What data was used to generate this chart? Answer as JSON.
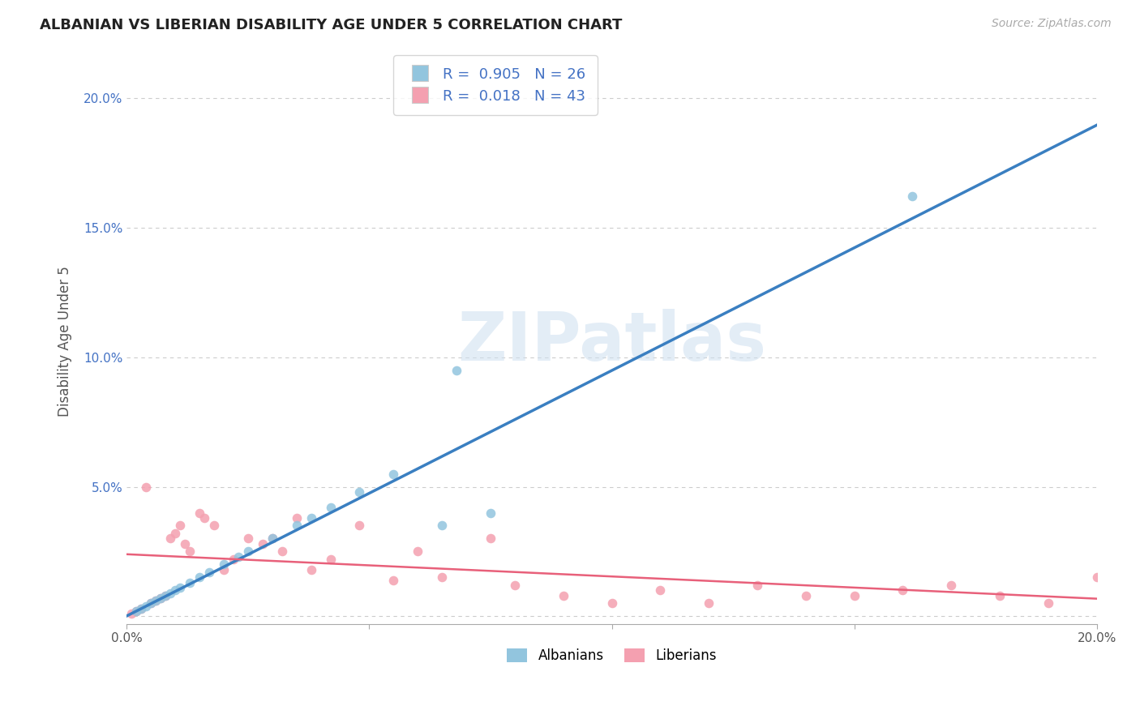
{
  "title": "ALBANIAN VS LIBERIAN DISABILITY AGE UNDER 5 CORRELATION CHART",
  "source": "Source: ZipAtlas.com",
  "ylabel": "Disability Age Under 5",
  "xlim": [
    0.0,
    0.2
  ],
  "ylim": [
    -0.003,
    0.215
  ],
  "legend_albanian_R": "0.905",
  "legend_albanian_N": "26",
  "legend_liberian_R": "0.018",
  "legend_liberian_N": "43",
  "albanian_color": "#92c5de",
  "liberian_color": "#f4a0b0",
  "albanian_line_color": "#3a7fc1",
  "liberian_line_color": "#e8607a",
  "watermark_text": "ZIPatlas",
  "alb_x": [
    0.002,
    0.003,
    0.004,
    0.005,
    0.006,
    0.007,
    0.008,
    0.009,
    0.01,
    0.011,
    0.013,
    0.015,
    0.017,
    0.02,
    0.023,
    0.025,
    0.03,
    0.035,
    0.038,
    0.042,
    0.048,
    0.055,
    0.065,
    0.075,
    0.068,
    0.162
  ],
  "alb_y": [
    0.002,
    0.003,
    0.004,
    0.005,
    0.006,
    0.007,
    0.008,
    0.009,
    0.01,
    0.011,
    0.013,
    0.015,
    0.017,
    0.02,
    0.023,
    0.025,
    0.03,
    0.035,
    0.038,
    0.042,
    0.048,
    0.055,
    0.035,
    0.04,
    0.095,
    0.162
  ],
  "lib_x": [
    0.001,
    0.002,
    0.003,
    0.004,
    0.005,
    0.006,
    0.007,
    0.008,
    0.009,
    0.01,
    0.011,
    0.012,
    0.013,
    0.015,
    0.016,
    0.018,
    0.02,
    0.022,
    0.025,
    0.028,
    0.03,
    0.032,
    0.035,
    0.038,
    0.042,
    0.048,
    0.055,
    0.06,
    0.065,
    0.075,
    0.08,
    0.09,
    0.1,
    0.11,
    0.12,
    0.13,
    0.14,
    0.15,
    0.16,
    0.17,
    0.18,
    0.19,
    0.2
  ],
  "lib_y": [
    0.001,
    0.002,
    0.003,
    0.05,
    0.005,
    0.006,
    0.007,
    0.008,
    0.03,
    0.032,
    0.035,
    0.028,
    0.025,
    0.04,
    0.038,
    0.035,
    0.018,
    0.022,
    0.03,
    0.028,
    0.03,
    0.025,
    0.038,
    0.018,
    0.022,
    0.035,
    0.014,
    0.025,
    0.015,
    0.03,
    0.012,
    0.008,
    0.005,
    0.01,
    0.005,
    0.012,
    0.008,
    0.008,
    0.01,
    0.012,
    0.008,
    0.005,
    0.015
  ]
}
